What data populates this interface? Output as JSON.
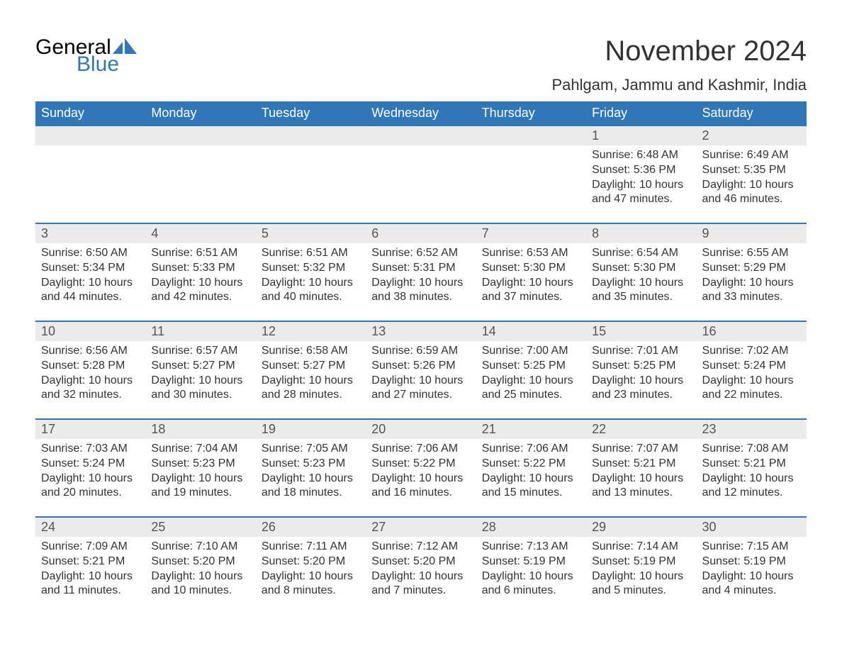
{
  "brand": {
    "general": "General",
    "blue": "Blue",
    "general_color": "#333333",
    "blue_color": "#3077b8",
    "icon_color": "#3077b8"
  },
  "title": "November 2024",
  "location": "Pahlgam, Jammu and Kashmir, India",
  "colors": {
    "header_bg": "#3077b8",
    "header_text": "#ffffff",
    "daynum_bg": "#ebebeb",
    "daynum_text": "#555555",
    "body_text": "#333333",
    "row_border": "#3077b8",
    "page_bg": "#ffffff"
  },
  "fonts": {
    "title_size": 40,
    "location_size": 22,
    "header_size": 18,
    "daynum_size": 18,
    "body_size": 16
  },
  "labels": {
    "sunrise": "Sunrise:",
    "sunset": "Sunset:",
    "daylight": "Daylight:"
  },
  "day_headers": [
    "Sunday",
    "Monday",
    "Tuesday",
    "Wednesday",
    "Thursday",
    "Friday",
    "Saturday"
  ],
  "weeks": [
    [
      {
        "empty": true
      },
      {
        "empty": true
      },
      {
        "empty": true
      },
      {
        "empty": true
      },
      {
        "empty": true
      },
      {
        "n": 1,
        "sunrise": "6:48 AM",
        "sunset": "5:36 PM",
        "daylight": "10 hours and 47 minutes."
      },
      {
        "n": 2,
        "sunrise": "6:49 AM",
        "sunset": "5:35 PM",
        "daylight": "10 hours and 46 minutes."
      }
    ],
    [
      {
        "n": 3,
        "sunrise": "6:50 AM",
        "sunset": "5:34 PM",
        "daylight": "10 hours and 44 minutes."
      },
      {
        "n": 4,
        "sunrise": "6:51 AM",
        "sunset": "5:33 PM",
        "daylight": "10 hours and 42 minutes."
      },
      {
        "n": 5,
        "sunrise": "6:51 AM",
        "sunset": "5:32 PM",
        "daylight": "10 hours and 40 minutes."
      },
      {
        "n": 6,
        "sunrise": "6:52 AM",
        "sunset": "5:31 PM",
        "daylight": "10 hours and 38 minutes."
      },
      {
        "n": 7,
        "sunrise": "6:53 AM",
        "sunset": "5:30 PM",
        "daylight": "10 hours and 37 minutes."
      },
      {
        "n": 8,
        "sunrise": "6:54 AM",
        "sunset": "5:30 PM",
        "daylight": "10 hours and 35 minutes."
      },
      {
        "n": 9,
        "sunrise": "6:55 AM",
        "sunset": "5:29 PM",
        "daylight": "10 hours and 33 minutes."
      }
    ],
    [
      {
        "n": 10,
        "sunrise": "6:56 AM",
        "sunset": "5:28 PM",
        "daylight": "10 hours and 32 minutes."
      },
      {
        "n": 11,
        "sunrise": "6:57 AM",
        "sunset": "5:27 PM",
        "daylight": "10 hours and 30 minutes."
      },
      {
        "n": 12,
        "sunrise": "6:58 AM",
        "sunset": "5:27 PM",
        "daylight": "10 hours and 28 minutes."
      },
      {
        "n": 13,
        "sunrise": "6:59 AM",
        "sunset": "5:26 PM",
        "daylight": "10 hours and 27 minutes."
      },
      {
        "n": 14,
        "sunrise": "7:00 AM",
        "sunset": "5:25 PM",
        "daylight": "10 hours and 25 minutes."
      },
      {
        "n": 15,
        "sunrise": "7:01 AM",
        "sunset": "5:25 PM",
        "daylight": "10 hours and 23 minutes."
      },
      {
        "n": 16,
        "sunrise": "7:02 AM",
        "sunset": "5:24 PM",
        "daylight": "10 hours and 22 minutes."
      }
    ],
    [
      {
        "n": 17,
        "sunrise": "7:03 AM",
        "sunset": "5:24 PM",
        "daylight": "10 hours and 20 minutes."
      },
      {
        "n": 18,
        "sunrise": "7:04 AM",
        "sunset": "5:23 PM",
        "daylight": "10 hours and 19 minutes."
      },
      {
        "n": 19,
        "sunrise": "7:05 AM",
        "sunset": "5:23 PM",
        "daylight": "10 hours and 18 minutes."
      },
      {
        "n": 20,
        "sunrise": "7:06 AM",
        "sunset": "5:22 PM",
        "daylight": "10 hours and 16 minutes."
      },
      {
        "n": 21,
        "sunrise": "7:06 AM",
        "sunset": "5:22 PM",
        "daylight": "10 hours and 15 minutes."
      },
      {
        "n": 22,
        "sunrise": "7:07 AM",
        "sunset": "5:21 PM",
        "daylight": "10 hours and 13 minutes."
      },
      {
        "n": 23,
        "sunrise": "7:08 AM",
        "sunset": "5:21 PM",
        "daylight": "10 hours and 12 minutes."
      }
    ],
    [
      {
        "n": 24,
        "sunrise": "7:09 AM",
        "sunset": "5:21 PM",
        "daylight": "10 hours and 11 minutes."
      },
      {
        "n": 25,
        "sunrise": "7:10 AM",
        "sunset": "5:20 PM",
        "daylight": "10 hours and 10 minutes."
      },
      {
        "n": 26,
        "sunrise": "7:11 AM",
        "sunset": "5:20 PM",
        "daylight": "10 hours and 8 minutes."
      },
      {
        "n": 27,
        "sunrise": "7:12 AM",
        "sunset": "5:20 PM",
        "daylight": "10 hours and 7 minutes."
      },
      {
        "n": 28,
        "sunrise": "7:13 AM",
        "sunset": "5:19 PM",
        "daylight": "10 hours and 6 minutes."
      },
      {
        "n": 29,
        "sunrise": "7:14 AM",
        "sunset": "5:19 PM",
        "daylight": "10 hours and 5 minutes."
      },
      {
        "n": 30,
        "sunrise": "7:15 AM",
        "sunset": "5:19 PM",
        "daylight": "10 hours and 4 minutes."
      }
    ]
  ]
}
